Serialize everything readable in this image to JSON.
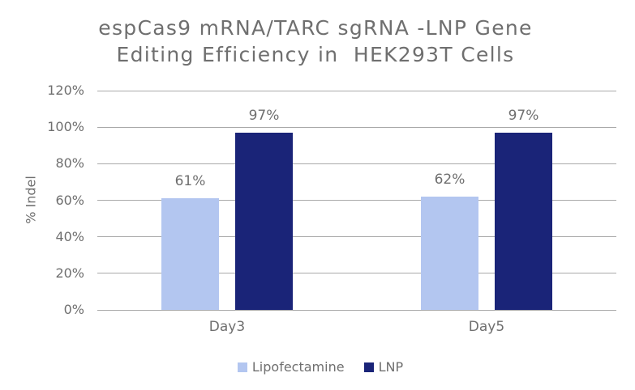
{
  "title": {
    "line1": "espCas9 mRNA/TARC sgRNA -LNP Gene",
    "line2": "Editing Efficiency in  HEK293T Cells"
  },
  "chart_data": {
    "type": "bar",
    "categories": [
      "Day3",
      "Day5"
    ],
    "series": [
      {
        "name": "Lipofectamine",
        "color": "#b3c6f0",
        "values": [
          61,
          62
        ]
      },
      {
        "name": "LNP",
        "color": "#1a2478",
        "values": [
          97,
          97
        ]
      }
    ],
    "ylabel": "% Indel",
    "ylim": [
      0,
      120
    ],
    "ytick_step": 20,
    "ytick_labels": [
      "0%",
      "20%",
      "40%",
      "60%",
      "80%",
      "100%",
      "120%"
    ],
    "value_label_suffix": "%",
    "grid": true,
    "legend_position": "bottom",
    "grid_color": "#a9a9a9",
    "text_color": "#6f6f6f"
  }
}
